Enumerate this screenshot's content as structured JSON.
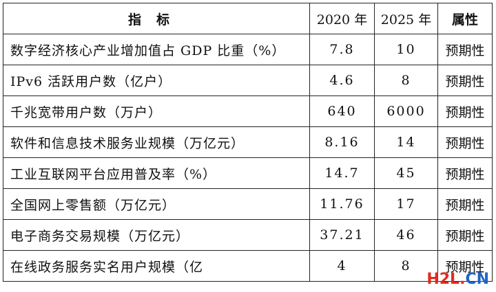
{
  "table": {
    "headers": [
      "指标",
      "2020 年",
      "2025 年",
      "属性"
    ],
    "rows": [
      {
        "indicator": "数字经济核心产业增加值占 GDP 比重（%）",
        "y2020": "7.8",
        "y2025": "10",
        "attr": "预期性"
      },
      {
        "indicator": "IPv6 活跃用户数（亿户）",
        "y2020": "4.6",
        "y2025": "8",
        "attr": "预期性"
      },
      {
        "indicator": "千兆宽带用户数（万户）",
        "y2020": "640",
        "y2025": "6000",
        "attr": "预期性"
      },
      {
        "indicator": "软件和信息技术服务业规模（万亿元）",
        "y2020": "8.16",
        "y2025": "14",
        "attr": "预期性"
      },
      {
        "indicator": "工业互联网平台应用普及率（%）",
        "y2020": "14.7",
        "y2025": "45",
        "attr": "预期性"
      },
      {
        "indicator": "全国网上零售额（万亿元）",
        "y2020": "11.76",
        "y2025": "17",
        "attr": "预期性"
      },
      {
        "indicator": "电子商务交易规模（万亿元）",
        "y2020": "37.21",
        "y2025": "46",
        "attr": "预期性"
      },
      {
        "indicator": "在线政务服务实名用户规模（亿",
        "y2020": "4",
        "y2025": "8",
        "attr": "预期性"
      }
    ]
  },
  "watermark": {
    "h2l": "H2L",
    "dot": ".",
    "cn": "CN"
  }
}
